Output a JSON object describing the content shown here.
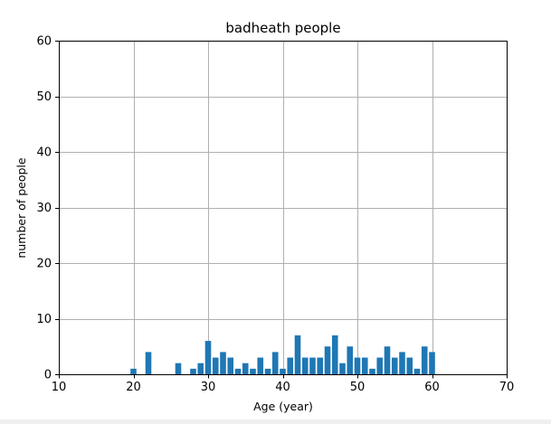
{
  "chart_data": {
    "type": "bar",
    "title": "badheath people",
    "xlabel": "Age (year)",
    "ylabel": "number of people",
    "xlim": [
      10,
      70
    ],
    "ylim": [
      0,
      60
    ],
    "xticks": [
      10,
      20,
      30,
      40,
      50,
      60,
      70
    ],
    "yticks": [
      0,
      10,
      20,
      30,
      40,
      50,
      60
    ],
    "grid": true,
    "bar_color": "#1f77b4",
    "x": [
      20,
      22,
      26,
      28,
      29,
      30,
      31,
      32,
      33,
      34,
      35,
      36,
      37,
      38,
      39,
      40,
      41,
      42,
      43,
      44,
      45,
      46,
      47,
      48,
      49,
      50,
      51,
      52,
      53,
      54,
      55,
      56,
      57,
      58,
      59,
      60
    ],
    "values": [
      1,
      4,
      2,
      1,
      2,
      6,
      3,
      4,
      3,
      1,
      2,
      1,
      3,
      1,
      4,
      1,
      3,
      7,
      3,
      3,
      3,
      5,
      7,
      2,
      5,
      3,
      3,
      1,
      3,
      5,
      3,
      4,
      3,
      1,
      5,
      4
    ]
  }
}
